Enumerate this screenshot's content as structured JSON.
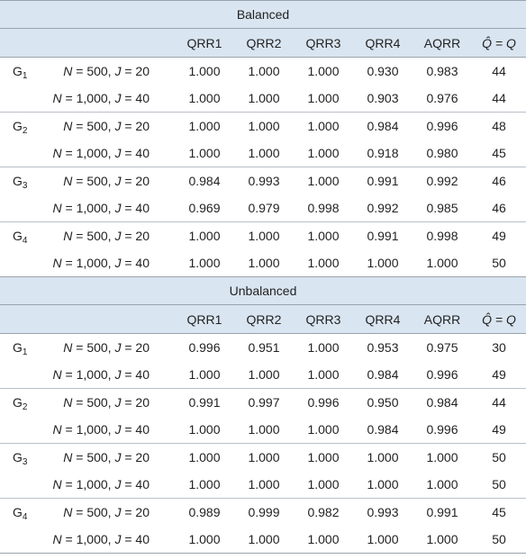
{
  "columns": [
    "QRR1",
    "QRR2",
    "QRR3",
    "QRR4",
    "AQRR",
    "Q̂ = Q"
  ],
  "sections": [
    {
      "title": "Balanced",
      "groups": [
        {
          "label": "G",
          "sub": "1",
          "rows": [
            {
              "N": "500",
              "J": "20",
              "values": [
                "1.000",
                "1.000",
                "1.000",
                "0.930",
                "0.983",
                "44"
              ]
            },
            {
              "N": "1,000",
              "J": "40",
              "values": [
                "1.000",
                "1.000",
                "1.000",
                "0.903",
                "0.976",
                "44"
              ]
            }
          ]
        },
        {
          "label": "G",
          "sub": "2",
          "rows": [
            {
              "N": "500",
              "J": "20",
              "values": [
                "1.000",
                "1.000",
                "1.000",
                "0.984",
                "0.996",
                "48"
              ]
            },
            {
              "N": "1,000",
              "J": "40",
              "values": [
                "1.000",
                "1.000",
                "1.000",
                "0.918",
                "0.980",
                "45"
              ]
            }
          ]
        },
        {
          "label": "G",
          "sub": "3",
          "rows": [
            {
              "N": "500",
              "J": "20",
              "values": [
                "0.984",
                "0.993",
                "1.000",
                "0.991",
                "0.992",
                "46"
              ]
            },
            {
              "N": "1,000",
              "J": "40",
              "values": [
                "0.969",
                "0.979",
                "0.998",
                "0.992",
                "0.985",
                "46"
              ]
            }
          ]
        },
        {
          "label": "G",
          "sub": "4",
          "rows": [
            {
              "N": "500",
              "J": "20",
              "values": [
                "1.000",
                "1.000",
                "1.000",
                "0.991",
                "0.998",
                "49"
              ]
            },
            {
              "N": "1,000",
              "J": "40",
              "values": [
                "1.000",
                "1.000",
                "1.000",
                "1.000",
                "1.000",
                "50"
              ]
            }
          ]
        }
      ]
    },
    {
      "title": "Unbalanced",
      "groups": [
        {
          "label": "G",
          "sub": "1",
          "rows": [
            {
              "N": "500",
              "J": "20",
              "values": [
                "0.996",
                "0.951",
                "1.000",
                "0.953",
                "0.975",
                "30"
              ]
            },
            {
              "N": "1,000",
              "J": "40",
              "values": [
                "1.000",
                "1.000",
                "1.000",
                "0.984",
                "0.996",
                "49"
              ]
            }
          ]
        },
        {
          "label": "G",
          "sub": "2",
          "rows": [
            {
              "N": "500",
              "J": "20",
              "values": [
                "0.991",
                "0.997",
                "0.996",
                "0.950",
                "0.984",
                "44"
              ]
            },
            {
              "N": "1,000",
              "J": "40",
              "values": [
                "1.000",
                "1.000",
                "1.000",
                "0.984",
                "0.996",
                "49"
              ]
            }
          ]
        },
        {
          "label": "G",
          "sub": "3",
          "rows": [
            {
              "N": "500",
              "J": "20",
              "values": [
                "1.000",
                "1.000",
                "1.000",
                "1.000",
                "1.000",
                "50"
              ]
            },
            {
              "N": "1,000",
              "J": "40",
              "values": [
                "1.000",
                "1.000",
                "1.000",
                "1.000",
                "1.000",
                "50"
              ]
            }
          ]
        },
        {
          "label": "G",
          "sub": "4",
          "rows": [
            {
              "N": "500",
              "J": "20",
              "values": [
                "0.989",
                "0.999",
                "0.982",
                "0.993",
                "0.991",
                "45"
              ]
            },
            {
              "N": "1,000",
              "J": "40",
              "values": [
                "1.000",
                "1.000",
                "1.000",
                "1.000",
                "1.000",
                "50"
              ]
            }
          ]
        }
      ]
    }
  ]
}
